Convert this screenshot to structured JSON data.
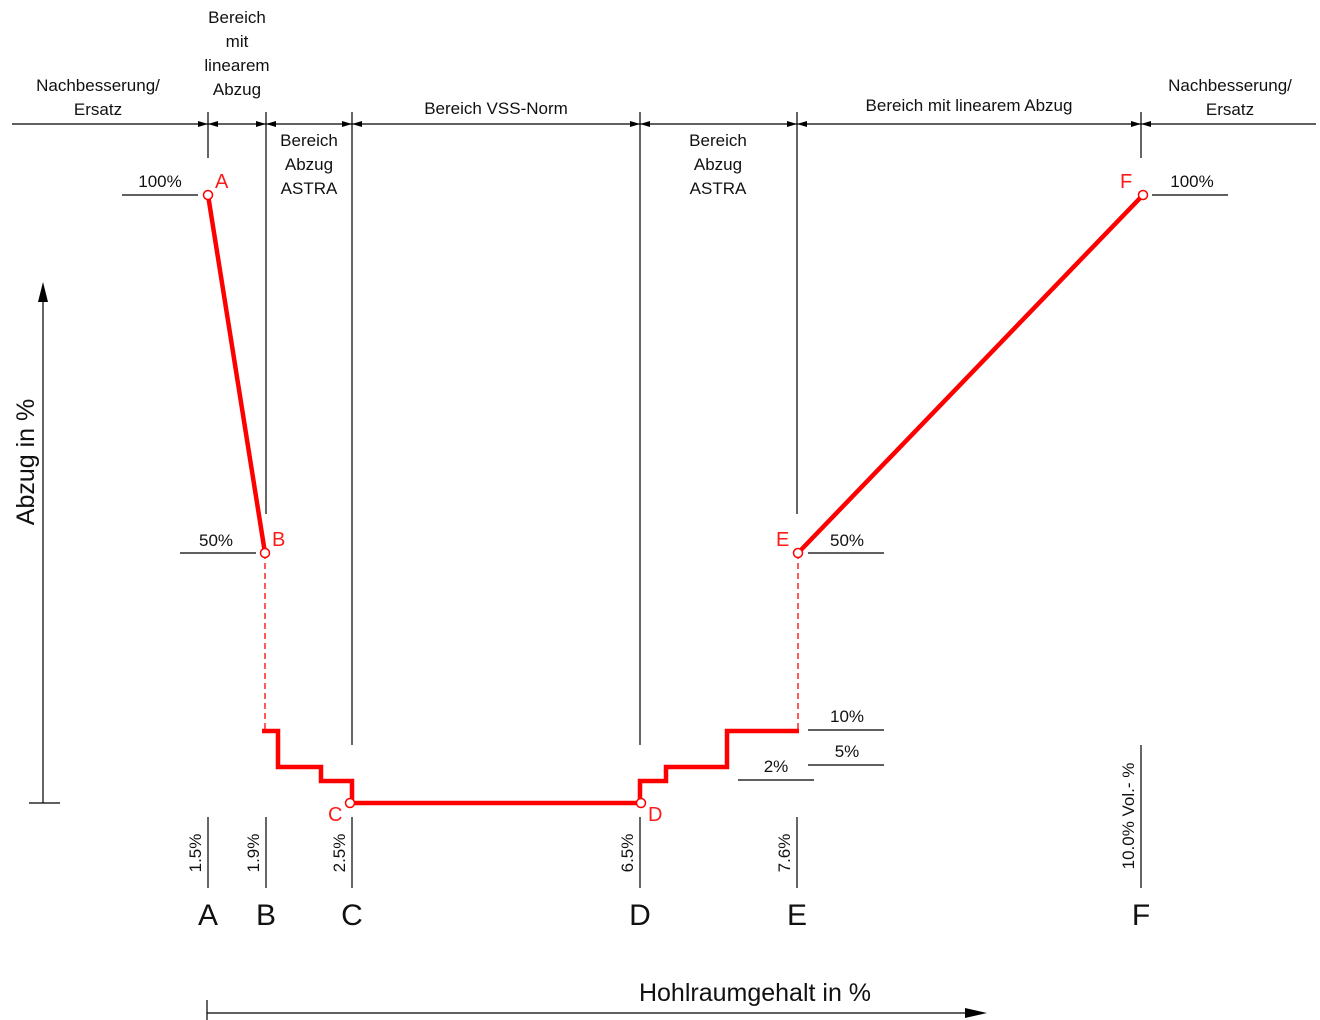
{
  "zones": {
    "left_repair": "Nachbesserung/\nErsatz",
    "left_linear": "Bereich\nmit\nlinearem\nAbzug",
    "left_astra": "Bereich\nAbzug\nASTRA",
    "vss": "Bereich VSS-Norm",
    "right_astra": "Bereich\nAbzug\nASTRA",
    "right_linear": "Bereich mit linearem Abzug",
    "right_repair": "Nachbesserung/\nErsatz"
  },
  "y_axis_label": "Abzug in %",
  "x_axis_label": "Hohlraumgehalt in %",
  "deduction_labels": {
    "a_100": "100%",
    "b_50": "50%",
    "e_50": "50%",
    "f_100": "100%",
    "e_10": "10%",
    "e_5": "5%",
    "e_2": "2%"
  },
  "points": [
    "A",
    "B",
    "C",
    "D",
    "E",
    "F"
  ],
  "void_values": [
    "1.5%",
    "1.9%",
    "2.5%",
    "6.5%",
    "7.6%",
    "10.0% Vol.- %"
  ],
  "colors": {
    "curve": "#ff0000",
    "lines": "#000000"
  }
}
